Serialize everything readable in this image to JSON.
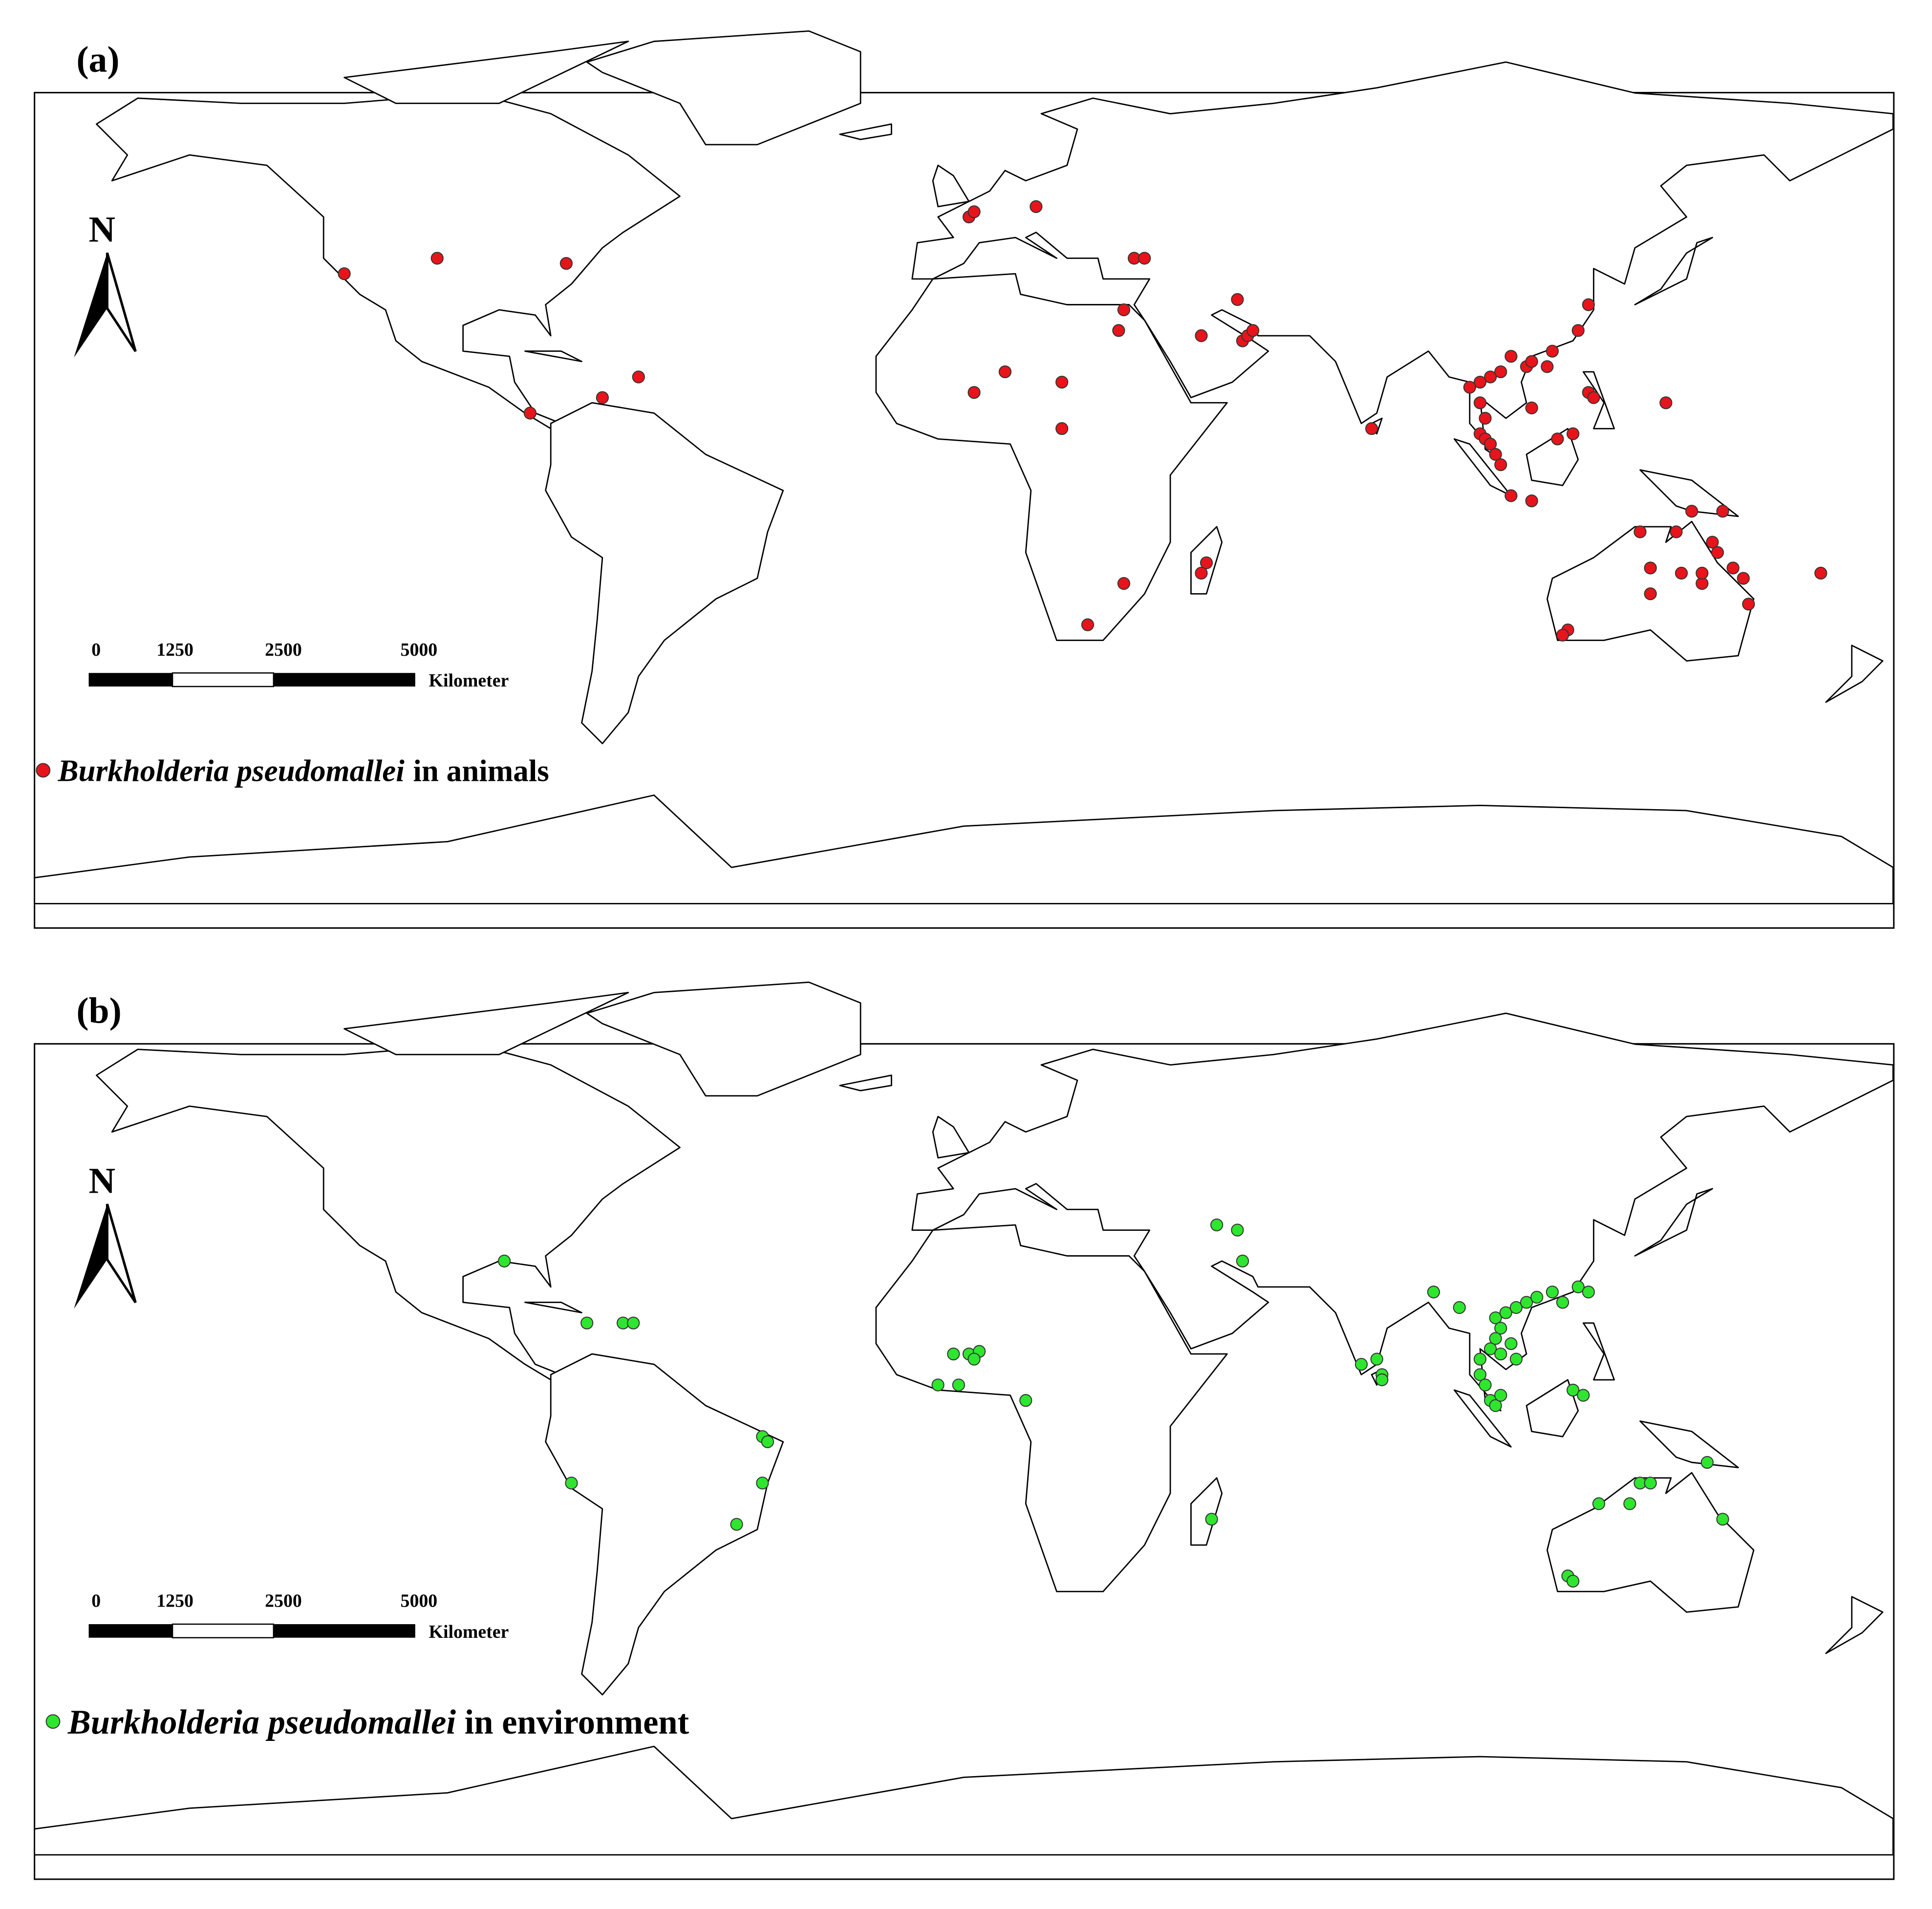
{
  "panels": [
    {
      "label": "(a)",
      "legend": {
        "species": "Burkholderia pseudomallei",
        "suffix": "in animals"
      },
      "color": "#e8141b",
      "points": [
        [
          -120,
          37
        ],
        [
          -102,
          40
        ],
        [
          -77,
          39
        ],
        [
          -84,
          10
        ],
        [
          -70,
          13
        ],
        [
          -63,
          17
        ],
        [
          1,
          48
        ],
        [
          2,
          49
        ],
        [
          14,
          50
        ],
        [
          33,
          40
        ],
        [
          35,
          40
        ],
        [
          30,
          26
        ],
        [
          31,
          30
        ],
        [
          46,
          25
        ],
        [
          53,
          32
        ],
        [
          54,
          24
        ],
        [
          55,
          25
        ],
        [
          56,
          26
        ],
        [
          8,
          18
        ],
        [
          2,
          14
        ],
        [
          19,
          16
        ],
        [
          19,
          7
        ],
        [
          79,
          7
        ],
        [
          31,
          -23
        ],
        [
          24,
          -31
        ],
        [
          47,
          -19
        ],
        [
          46,
          -21
        ],
        [
          121,
          31
        ],
        [
          119,
          26
        ],
        [
          113,
          19
        ],
        [
          106,
          21
        ],
        [
          102,
          17
        ],
        [
          104,
          18
        ],
        [
          100,
          16
        ],
        [
          98,
          15
        ],
        [
          109,
          19
        ],
        [
          110,
          20
        ],
        [
          114,
          22
        ],
        [
          121,
          14
        ],
        [
          122,
          13
        ],
        [
          118,
          6
        ],
        [
          115,
          5
        ],
        [
          110,
          11
        ],
        [
          100,
          12
        ],
        [
          101,
          9
        ],
        [
          100,
          6
        ],
        [
          101,
          5
        ],
        [
          102,
          4
        ],
        [
          103,
          2
        ],
        [
          104,
          0
        ],
        [
          106,
          -6
        ],
        [
          110,
          -7
        ],
        [
          136,
          12
        ],
        [
          131,
          -13
        ],
        [
          138,
          -13
        ],
        [
          141,
          -9
        ],
        [
          147,
          -9
        ],
        [
          145,
          -15
        ],
        [
          146,
          -17
        ],
        [
          149,
          -20
        ],
        [
          143,
          -23
        ],
        [
          139,
          -21
        ],
        [
          133,
          -20
        ],
        [
          133,
          -25
        ],
        [
          151,
          -22
        ],
        [
          152,
          -27
        ],
        [
          143,
          -21
        ],
        [
          117,
          -32
        ],
        [
          116,
          -33
        ],
        [
          166,
          -21
        ]
      ]
    },
    {
      "label": "(b)",
      "legend": {
        "species": "Burkholderia pseudomallei",
        "suffix": "in environment"
      },
      "color": "#2ee62e",
      "points": [
        [
          -89,
          30
        ],
        [
          -73,
          18
        ],
        [
          -66,
          18
        ],
        [
          -64,
          18
        ],
        [
          -76,
          -13
        ],
        [
          -39,
          -4
        ],
        [
          -38,
          -5
        ],
        [
          -39,
          -13
        ],
        [
          -44,
          -21
        ],
        [
          49,
          37
        ],
        [
          53,
          36
        ],
        [
          54,
          30
        ],
        [
          -2,
          12
        ],
        [
          1,
          12
        ],
        [
          3,
          12.5
        ],
        [
          2,
          11
        ],
        [
          -5,
          6
        ],
        [
          -1,
          6
        ],
        [
          12,
          3
        ],
        [
          77,
          10
        ],
        [
          80,
          11
        ],
        [
          81,
          8
        ],
        [
          81,
          7
        ],
        [
          91,
          24
        ],
        [
          96,
          21
        ],
        [
          48,
          -20
        ],
        [
          103,
          19
        ],
        [
          105,
          20
        ],
        [
          107,
          21
        ],
        [
          109,
          22
        ],
        [
          111,
          23
        ],
        [
          114,
          24
        ],
        [
          119,
          25
        ],
        [
          121,
          24
        ],
        [
          116,
          22
        ],
        [
          104,
          17
        ],
        [
          103,
          15
        ],
        [
          106,
          14
        ],
        [
          102,
          13
        ],
        [
          107,
          11
        ],
        [
          104,
          12
        ],
        [
          100,
          11
        ],
        [
          100,
          8
        ],
        [
          101,
          6
        ],
        [
          102,
          3
        ],
        [
          103,
          2
        ],
        [
          104,
          4
        ],
        [
          118,
          5
        ],
        [
          120,
          4
        ],
        [
          123,
          -17
        ],
        [
          129,
          -17
        ],
        [
          131,
          -13
        ],
        [
          133,
          -13
        ],
        [
          144,
          -9
        ],
        [
          147,
          -20
        ],
        [
          117,
          -31
        ],
        [
          118,
          -32
        ]
      ]
    }
  ],
  "north": "N",
  "scale": {
    "labels": [
      0,
      1250,
      2500,
      5000
    ],
    "unit": "Kilometer"
  }
}
